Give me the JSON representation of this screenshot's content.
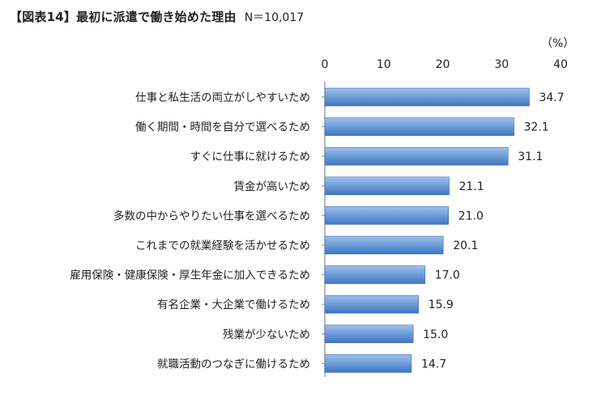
{
  "header": {
    "title": "【図表14】最初に派遣で働き始めた理由",
    "n_label": "N＝10,017"
  },
  "colors": {
    "bar_fill_top": "#9dc1ec",
    "bar_fill_bottom": "#3f76c4",
    "bar_stroke": "#3a6cb4"
  },
  "chart_data": {
    "type": "bar",
    "orientation": "horizontal",
    "unit": "（%）",
    "xlim": [
      0,
      40
    ],
    "xticks": [
      "0",
      "10",
      "20",
      "30",
      "40"
    ],
    "grid": false,
    "categories": [
      "仕事と私生活の両立がしやすいため",
      "働く期間・時間を自分で選べるため",
      "すぐに仕事に就けるため",
      "賃金が高いため",
      "多数の中からやりたい仕事を選べるため",
      "これまでの就業経験を活かせるため",
      "雇用保険・健康保険・厚生年金に加入できるため",
      "有名企業・大企業で働けるため",
      "残業が少ないため",
      "就職活動のつなぎに働けるため"
    ],
    "values": [
      34.7,
      32.1,
      31.1,
      21.1,
      21.0,
      20.1,
      17.0,
      15.9,
      15.0,
      14.7
    ],
    "value_labels": [
      "34.7",
      "32.1",
      "31.1",
      "21.1",
      "21.0",
      "20.1",
      "17.0",
      "15.9",
      "15.0",
      "14.7"
    ]
  }
}
